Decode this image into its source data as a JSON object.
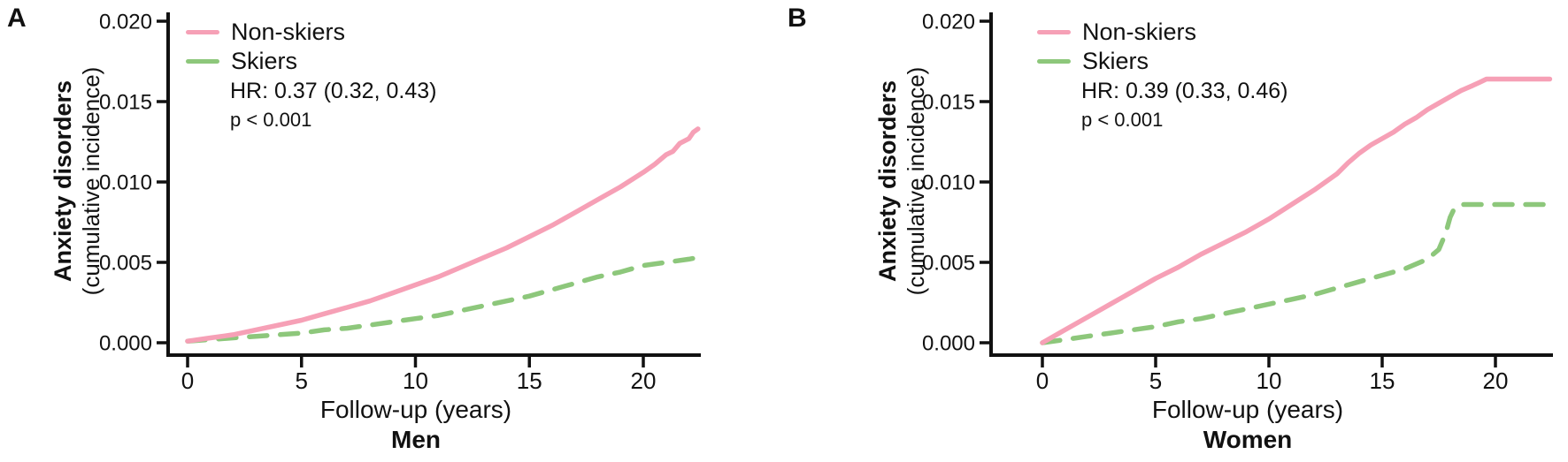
{
  "colors": {
    "nonskiers": "#f6a0b6",
    "skiers": "#8dc77b",
    "axis": "#111111"
  },
  "chart_data": [
    {
      "type": "line",
      "panel": "A",
      "title": "Men",
      "xlabel": "Follow-up (years)",
      "ylabel_line1": "Anxiety disorders",
      "ylabel_line2": "(cumulative incidence)",
      "xlim": [
        0,
        22.5
      ],
      "ylim": [
        0,
        0.02
      ],
      "xticks": [
        0,
        5,
        10,
        15,
        20
      ],
      "ytick_labels": [
        "0.000",
        "0.005",
        "0.010",
        "0.015",
        "0.020"
      ],
      "legend_position": "top-left",
      "grid": false,
      "annotations": [
        "HR: 0.37 (0.32, 0.43)",
        "p < 0.001"
      ],
      "series": [
        {
          "name": "Non-skiers",
          "color": "#f6a0b6",
          "style": "solid",
          "x": [
            0,
            1,
            2,
            3,
            4,
            5,
            6,
            7,
            8,
            9,
            10,
            11,
            12,
            13,
            14,
            15,
            16,
            17,
            18,
            19,
            20,
            20.5,
            21,
            21.3,
            21.6,
            22,
            22.2,
            22.4
          ],
          "y": [
            0.0001,
            0.0003,
            0.0005,
            0.0008,
            0.0011,
            0.0014,
            0.0018,
            0.0022,
            0.0026,
            0.0031,
            0.0036,
            0.0041,
            0.0047,
            0.0053,
            0.0059,
            0.0066,
            0.0073,
            0.0081,
            0.0089,
            0.0097,
            0.0106,
            0.0111,
            0.0117,
            0.0119,
            0.0124,
            0.0127,
            0.0131,
            0.0133
          ]
        },
        {
          "name": "Skiers",
          "color": "#8dc77b",
          "style": "dashed",
          "x": [
            0,
            1,
            2,
            3,
            4,
            5,
            6,
            7,
            8,
            9,
            10,
            11,
            12,
            13,
            14,
            15,
            16,
            17,
            18,
            19,
            20,
            21,
            22,
            22.4
          ],
          "y": [
            0.0001,
            0.0002,
            0.0003,
            0.0004,
            0.0005,
            0.0006,
            0.0008,
            0.0009,
            0.0011,
            0.0013,
            0.0015,
            0.0017,
            0.002,
            0.0023,
            0.0026,
            0.0029,
            0.0033,
            0.0037,
            0.0041,
            0.0044,
            0.0048,
            0.005,
            0.0052,
            0.0053
          ]
        }
      ]
    },
    {
      "type": "line",
      "panel": "B",
      "title": "Women",
      "xlabel": "Follow-up (years)",
      "ylabel_line1": "Anxiety disorders",
      "ylabel_line2": "(cumulative incidence)",
      "xlim": [
        0,
        22.5
      ],
      "ylim": [
        0,
        0.02
      ],
      "xticks": [
        0,
        5,
        10,
        15,
        20
      ],
      "ytick_labels": [
        "0.000",
        "0.005",
        "0.010",
        "0.015",
        "0.020"
      ],
      "legend_position": "top-left",
      "grid": false,
      "annotations": [
        "HR: 0.39 (0.33, 0.46)",
        "p < 0.001"
      ],
      "series": [
        {
          "name": "Non-skiers",
          "color": "#f6a0b6",
          "style": "solid",
          "x": [
            0,
            1,
            2,
            3,
            4,
            5,
            6,
            7,
            8,
            9,
            10,
            11,
            12,
            13,
            13.5,
            14,
            14.5,
            15,
            15.5,
            16,
            16.5,
            17,
            17.5,
            18,
            18.5,
            19,
            19.3,
            19.6,
            22.4
          ],
          "y": [
            0.0,
            0.0008,
            0.0016,
            0.0024,
            0.0032,
            0.004,
            0.0047,
            0.0055,
            0.0062,
            0.0069,
            0.0077,
            0.0086,
            0.0095,
            0.0105,
            0.0112,
            0.0118,
            0.0123,
            0.0127,
            0.0131,
            0.0136,
            0.014,
            0.0145,
            0.0149,
            0.0153,
            0.0157,
            0.016,
            0.0162,
            0.0164,
            0.0164
          ]
        },
        {
          "name": "Skiers",
          "color": "#8dc77b",
          "style": "dashed",
          "x": [
            0,
            1,
            2,
            3,
            4,
            5,
            6,
            7,
            8,
            9,
            10,
            11,
            12,
            13,
            14,
            15,
            16,
            17,
            17.5,
            17.8,
            18,
            18.2,
            18.5,
            19,
            22.4
          ],
          "y": [
            0.0,
            0.0002,
            0.0004,
            0.0006,
            0.0008,
            0.001,
            0.0013,
            0.0015,
            0.0018,
            0.0021,
            0.0024,
            0.0027,
            0.003,
            0.0034,
            0.0038,
            0.0042,
            0.0046,
            0.0052,
            0.0058,
            0.0068,
            0.0078,
            0.0084,
            0.0086,
            0.0086,
            0.0086
          ]
        }
      ]
    }
  ]
}
